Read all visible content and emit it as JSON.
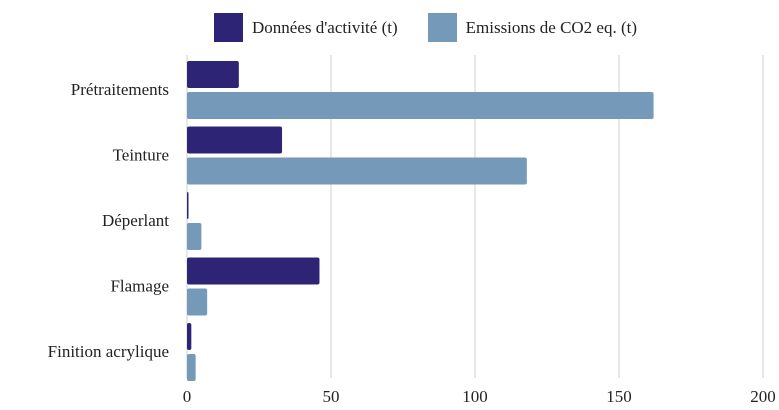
{
  "chart_data": {
    "type": "bar",
    "orientation": "horizontal",
    "categories": [
      "Prétraitements",
      "Teinture",
      "Déperlant",
      "Flamage",
      "Finition acrylique"
    ],
    "series": [
      {
        "name": "Données d'activité (t)",
        "color": "#2e2476",
        "values": [
          18,
          33,
          0.5,
          46,
          1.5
        ]
      },
      {
        "name": "Emissions de CO2 eq. (t)",
        "color": "#7599b8",
        "values": [
          162,
          118,
          5,
          7,
          3
        ]
      }
    ],
    "xticks": [
      "0",
      "50",
      "100",
      "150",
      "200"
    ],
    "xlim": [
      0,
      200
    ],
    "grid": true,
    "legend_position": "top"
  }
}
